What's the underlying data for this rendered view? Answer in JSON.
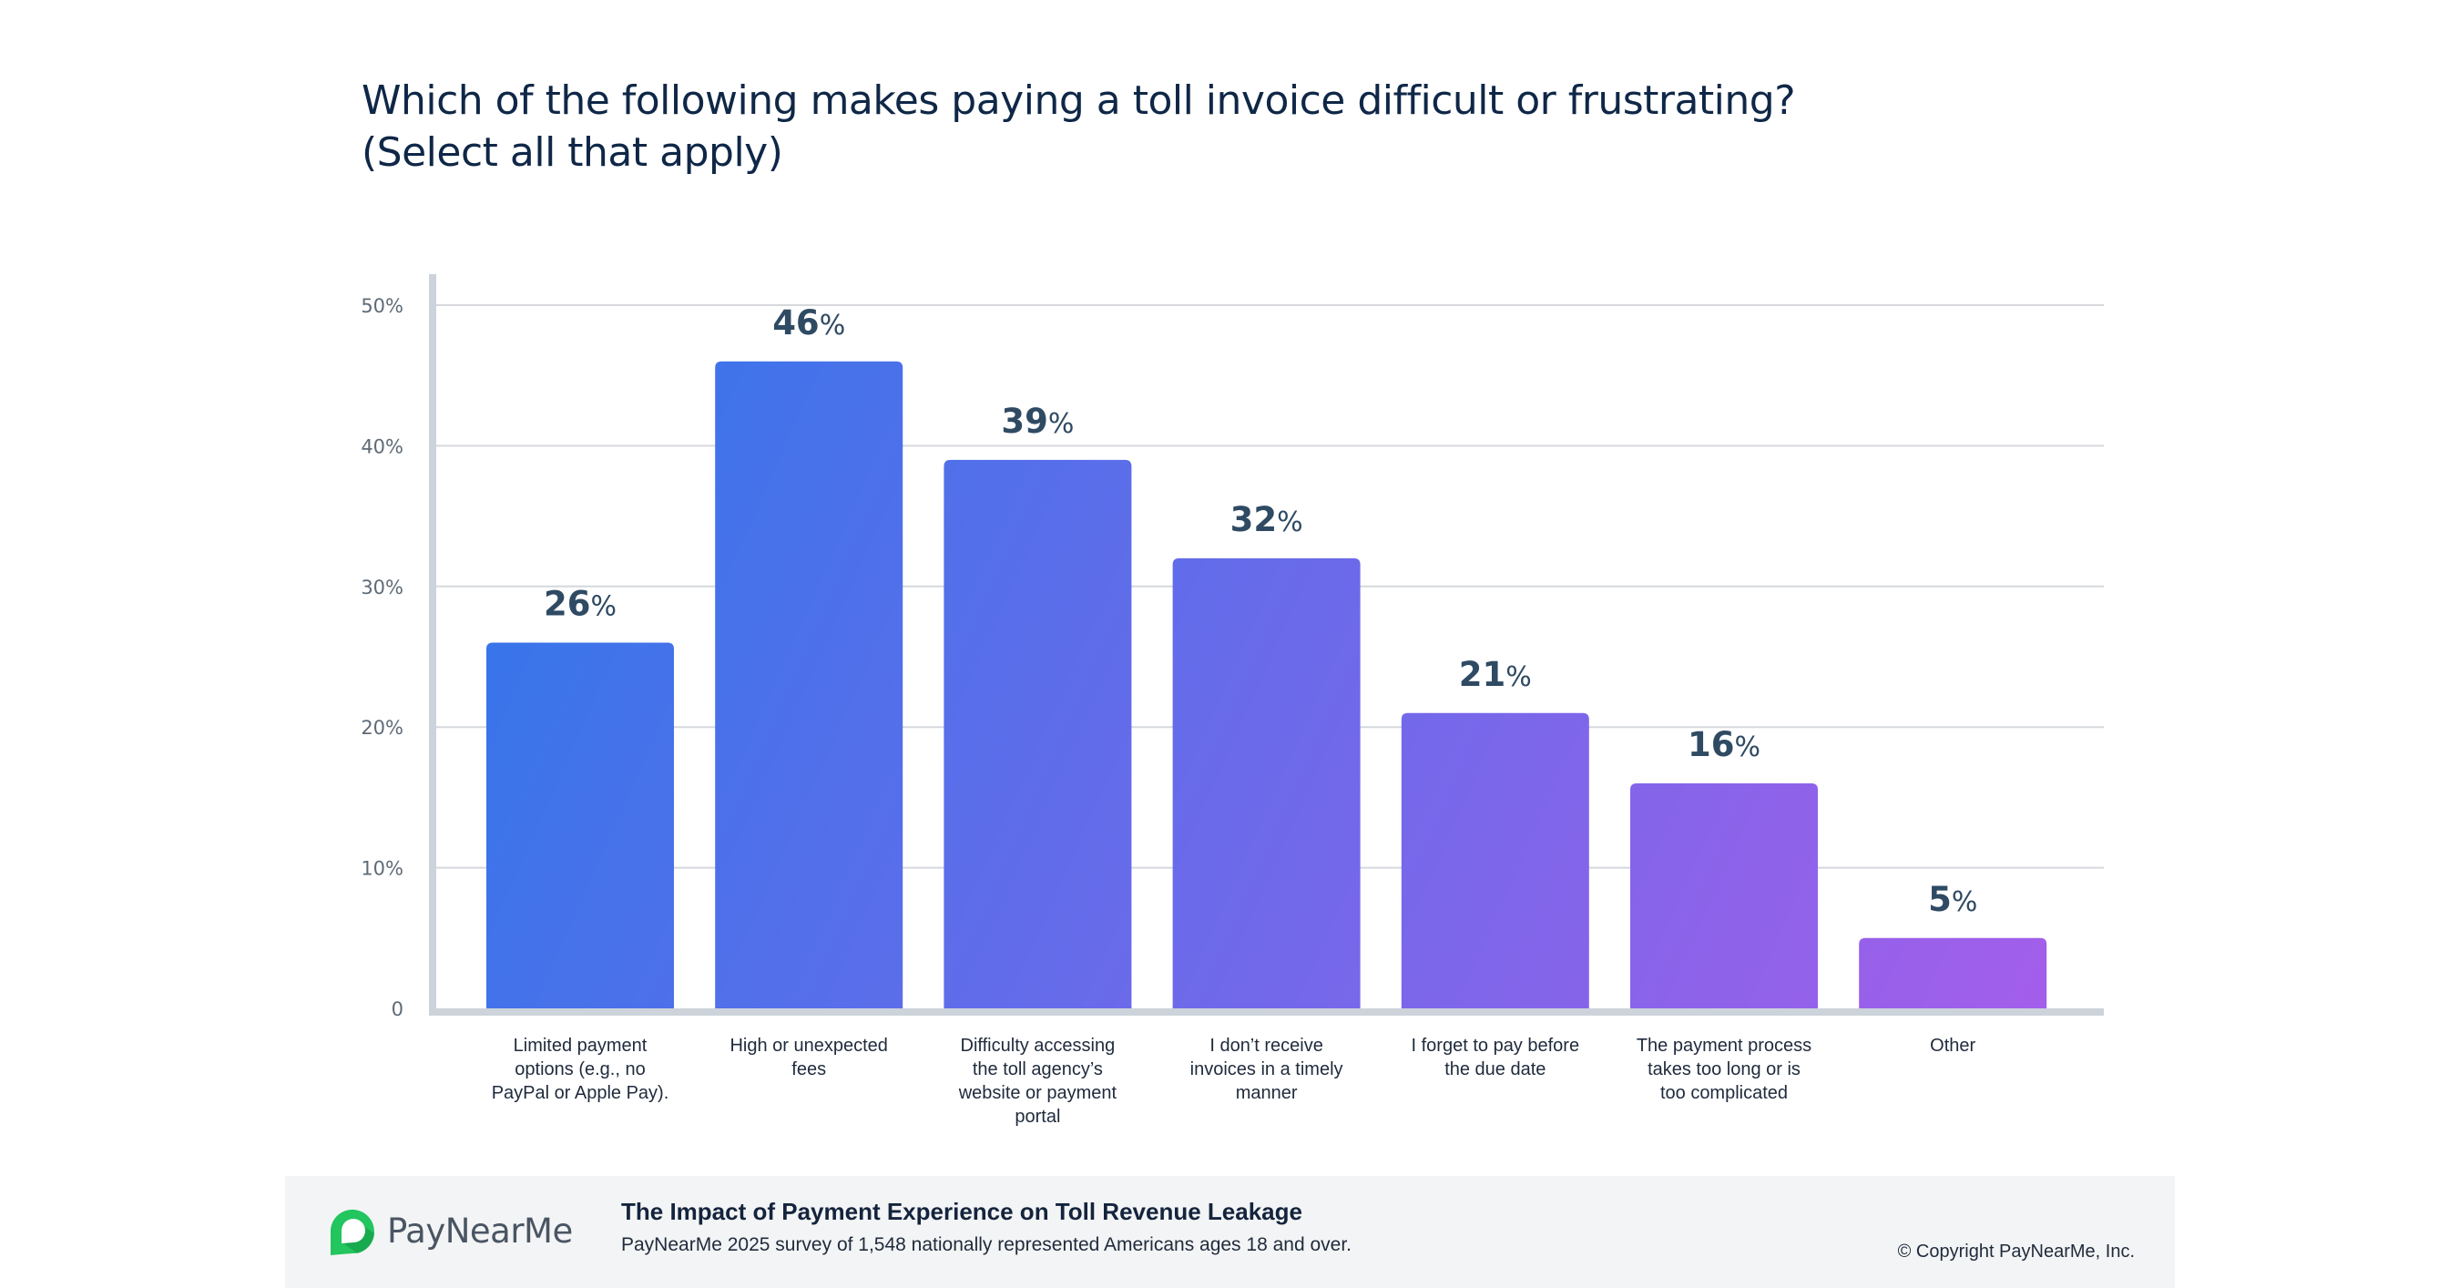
{
  "chart_data": {
    "type": "bar",
    "title": "Which of the following makes paying a toll invoice difficult or frustrating? (Select all that apply)",
    "title_lines": [
      "Which of the following makes paying a toll invoice difficult or frustrating?",
      "(Select all that apply)"
    ],
    "xlabel": "",
    "ylabel": "",
    "ylim": [
      0,
      50
    ],
    "yticks": [
      0,
      10,
      20,
      30,
      40,
      50
    ],
    "ytick_labels": [
      "0",
      "10%",
      "20%",
      "30%",
      "40%",
      "50%"
    ],
    "grid": true,
    "legend": "none",
    "categories": [
      "Limited payment options (e.g., no PayPal or Apple Pay).",
      "High or unexpected fees",
      "Difficulty accessing the toll agency's website or payment portal",
      "I don't receive invoices in a timely manner",
      "I forget to pay before the due date",
      "The payment process takes too long or is too complicated",
      "Other"
    ],
    "category_lines": [
      [
        "Limited payment",
        "options (e.g., no",
        "PayPal or Apple Pay)."
      ],
      [
        "High or unexpected",
        "fees"
      ],
      [
        "Difficulty accessing",
        "the toll agency’s",
        "website or payment",
        "portal"
      ],
      [
        "I don’t receive",
        "invoices in a timely",
        "manner"
      ],
      [
        "I forget to pay before",
        "the due date"
      ],
      [
        "The payment process",
        "takes too long or is",
        "too complicated"
      ],
      [
        "Other"
      ]
    ],
    "values": [
      26,
      46,
      39,
      32,
      21,
      16,
      5
    ],
    "value_labels": [
      "26",
      "46",
      "39",
      "32",
      "21",
      "16",
      "5"
    ],
    "value_suffix": "%",
    "colors": {
      "gradient_start": "#2e77ea",
      "gradient_end": "#a45eea"
    }
  },
  "footer": {
    "brand": "PayNearMe",
    "report_title": "The Impact of Payment Experience on Toll Revenue Leakage",
    "report_subtitle": "PayNearMe 2025 survey of 1,548 nationally represented Americans ages 18 and over.",
    "copyright": "© Copyright PayNearMe, Inc.",
    "logo_icon": "paynearme-pin-logo-icon",
    "brand_color": "#22c55e"
  }
}
